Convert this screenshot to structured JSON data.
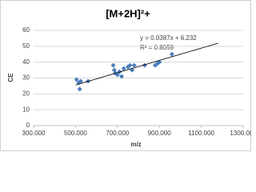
{
  "chart_data": {
    "type": "scatter",
    "title": "[M+2H]²+",
    "x_label": "m/z",
    "y_label": "CE",
    "x": [
      505,
      515,
      520,
      525,
      560,
      680,
      685,
      690,
      700,
      710,
      720,
      730,
      750,
      760,
      770,
      780,
      830,
      880,
      890,
      900,
      960
    ],
    "values": [
      29,
      27,
      23,
      28,
      28,
      38,
      35,
      33,
      32,
      34,
      31,
      36,
      37,
      38,
      35,
      38,
      38,
      38,
      39,
      40,
      45
    ],
    "color": "#4a7ebb",
    "xlim": [
      300,
      1300
    ],
    "xticks": [
      {
        "value": 300,
        "label": "300.000"
      },
      {
        "value": 500,
        "label": "500.000"
      },
      {
        "value": 700,
        "label": "700.000"
      },
      {
        "value": 900,
        "label": "900.000"
      },
      {
        "value": 1100,
        "label": "1100.000"
      },
      {
        "value": 1300,
        "label": "1300.000"
      }
    ],
    "ylim": [
      0,
      60
    ],
    "yticks": [
      0,
      10,
      20,
      30,
      40,
      50,
      60
    ],
    "grid": true,
    "trendline": {
      "slope": 0.0387,
      "intercept": 6.232,
      "x": [
        500,
        1180
      ]
    },
    "annotations": [
      "y = 0.0387x + 6.232",
      "R² = 0.8059"
    ]
  }
}
